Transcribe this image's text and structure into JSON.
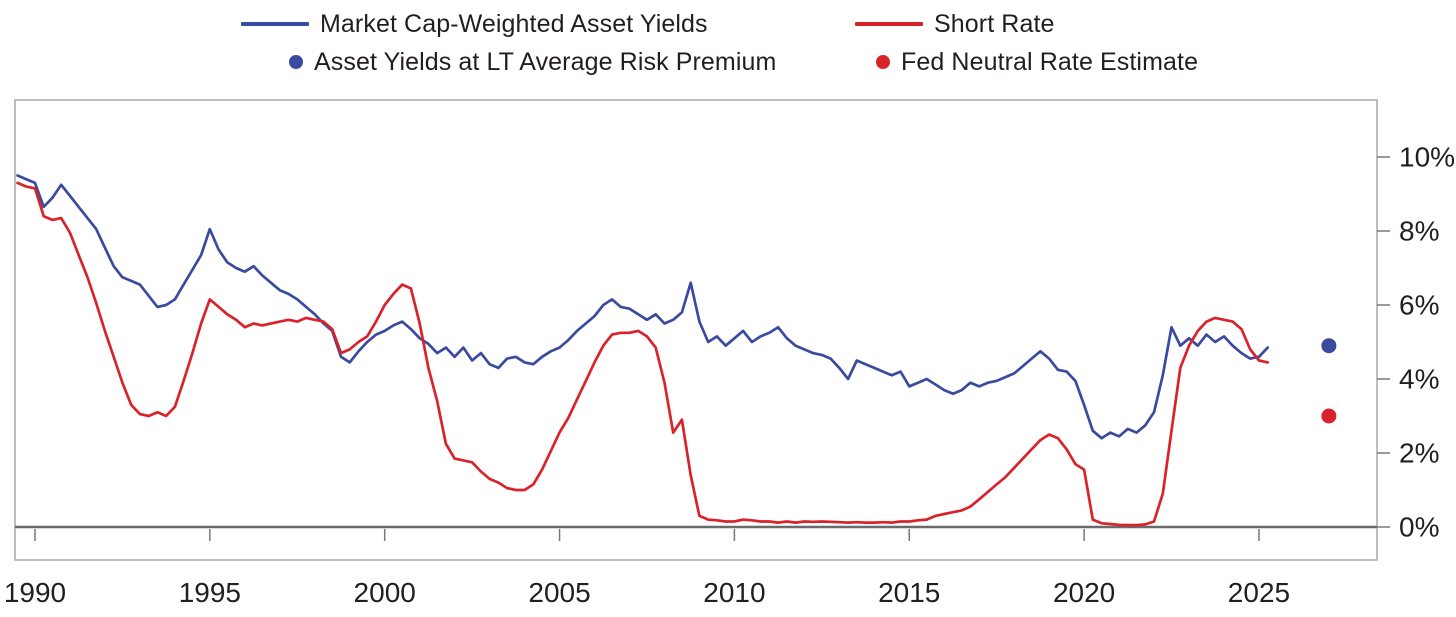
{
  "colors": {
    "blue": "#3A4B9F",
    "red": "#D9232B",
    "text": "#221E1F",
    "axis_box": "#A8A8A8",
    "tick": "#787878",
    "zero_line": "#6A6A6A"
  },
  "legend": {
    "items": [
      {
        "label": "Market Cap-Weighted Asset Yields",
        "marker": "line",
        "color_key": "blue"
      },
      {
        "label": "Short Rate",
        "marker": "line",
        "color_key": "red"
      },
      {
        "label": "Asset Yields at LT Average Risk Premium",
        "marker": "dot",
        "color_key": "blue"
      },
      {
        "label": "Fed Neutral Rate Estimate",
        "marker": "dot",
        "color_key": "red"
      }
    ]
  },
  "chart_data": {
    "type": "line",
    "title": "",
    "xlabel": "",
    "ylabel": "",
    "grid": false,
    "legend_position": "top",
    "xlim": [
      1989.4,
      2028.6
    ],
    "ylim": [
      -0.9,
      11.55
    ],
    "x_axis": {
      "ticks": [
        {
          "value": 1990,
          "label": "1990"
        },
        {
          "value": 1995,
          "label": "1995"
        },
        {
          "value": 2000,
          "label": "2000"
        },
        {
          "value": 2005,
          "label": "2005"
        },
        {
          "value": 2010,
          "label": "2010"
        },
        {
          "value": 2015,
          "label": "2015"
        },
        {
          "value": 2020,
          "label": "2020"
        },
        {
          "value": 2025,
          "label": "2025"
        }
      ]
    },
    "y_axis": {
      "unit": "%",
      "ticks": [
        {
          "value": 10,
          "label": "10%"
        },
        {
          "value": 8,
          "label": "8%"
        },
        {
          "value": 6,
          "label": "6%"
        },
        {
          "value": 4,
          "label": "4%"
        },
        {
          "value": 2,
          "label": "2%"
        },
        {
          "value": 0,
          "label": "0%"
        }
      ]
    },
    "series": [
      {
        "name": "Market Cap-Weighted Asset Yields",
        "color_key": "blue",
        "x_start": 1989.5,
        "x_step": 0.25,
        "values": [
          9.5,
          9.4,
          9.3,
          8.65,
          8.9,
          9.25,
          8.95,
          8.65,
          8.35,
          8.05,
          7.55,
          7.05,
          6.75,
          6.65,
          6.55,
          6.25,
          5.95,
          6.0,
          6.15,
          6.55,
          6.95,
          7.35,
          8.05,
          7.5,
          7.15,
          7.0,
          6.9,
          7.05,
          6.8,
          6.6,
          6.4,
          6.3,
          6.15,
          5.95,
          5.75,
          5.5,
          5.3,
          4.6,
          4.45,
          4.75,
          5.0,
          5.2,
          5.3,
          5.45,
          5.55,
          5.35,
          5.1,
          4.95,
          4.7,
          4.85,
          4.6,
          4.85,
          4.5,
          4.7,
          4.4,
          4.3,
          4.55,
          4.6,
          4.45,
          4.4,
          4.6,
          4.75,
          4.85,
          5.05,
          5.3,
          5.5,
          5.7,
          6.0,
          6.15,
          5.95,
          5.9,
          5.75,
          5.6,
          5.75,
          5.5,
          5.6,
          5.8,
          6.6,
          5.55,
          5.0,
          5.15,
          4.9,
          5.1,
          5.3,
          5.0,
          5.15,
          5.25,
          5.4,
          5.1,
          4.9,
          4.8,
          4.7,
          4.65,
          4.55,
          4.3,
          4.0,
          4.5,
          4.4,
          4.3,
          4.2,
          4.1,
          4.2,
          3.8,
          3.9,
          4.0,
          3.85,
          3.7,
          3.6,
          3.7,
          3.9,
          3.8,
          3.9,
          3.95,
          4.05,
          4.15,
          4.35,
          4.55,
          4.75,
          4.55,
          4.25,
          4.2,
          3.95,
          3.3,
          2.6,
          2.4,
          2.55,
          2.45,
          2.65,
          2.55,
          2.75,
          3.1,
          4.1,
          5.4,
          4.9,
          5.1,
          4.9,
          5.2,
          5.0,
          5.15,
          4.9,
          4.7,
          4.55,
          4.6,
          4.85
        ]
      },
      {
        "name": "Short Rate",
        "color_key": "red",
        "x_start": 1989.5,
        "x_step": 0.25,
        "values": [
          9.3,
          9.2,
          9.15,
          8.4,
          8.3,
          8.35,
          7.95,
          7.35,
          6.75,
          6.05,
          5.3,
          4.6,
          3.9,
          3.3,
          3.05,
          3.0,
          3.1,
          3.0,
          3.25,
          3.95,
          4.7,
          5.5,
          6.15,
          5.95,
          5.75,
          5.6,
          5.4,
          5.5,
          5.45,
          5.5,
          5.55,
          5.6,
          5.55,
          5.65,
          5.6,
          5.55,
          5.35,
          4.7,
          4.8,
          5.0,
          5.15,
          5.55,
          6.0,
          6.3,
          6.55,
          6.45,
          5.5,
          4.3,
          3.4,
          2.25,
          1.85,
          1.8,
          1.75,
          1.5,
          1.3,
          1.2,
          1.05,
          1.0,
          1.0,
          1.15,
          1.55,
          2.05,
          2.55,
          2.95,
          3.45,
          3.95,
          4.45,
          4.9,
          5.2,
          5.25,
          5.25,
          5.3,
          5.15,
          4.85,
          3.9,
          2.55,
          2.9,
          1.4,
          0.3,
          0.2,
          0.18,
          0.15,
          0.15,
          0.2,
          0.18,
          0.15,
          0.15,
          0.12,
          0.15,
          0.12,
          0.15,
          0.14,
          0.15,
          0.14,
          0.13,
          0.12,
          0.13,
          0.12,
          0.12,
          0.13,
          0.12,
          0.15,
          0.15,
          0.18,
          0.2,
          0.3,
          0.35,
          0.4,
          0.45,
          0.55,
          0.75,
          0.95,
          1.15,
          1.35,
          1.6,
          1.85,
          2.1,
          2.35,
          2.5,
          2.4,
          2.1,
          1.7,
          1.55,
          0.2,
          0.1,
          0.08,
          0.06,
          0.05,
          0.05,
          0.07,
          0.15,
          0.9,
          2.6,
          4.3,
          4.9,
          5.3,
          5.55,
          5.65,
          5.6,
          5.55,
          5.35,
          4.8,
          4.5,
          4.45
        ]
      }
    ],
    "points": [
      {
        "name": "Asset Yields at LT Average Risk Premium",
        "color_key": "blue",
        "x": 2027.0,
        "value": 4.9
      },
      {
        "name": "Fed Neutral Rate Estimate",
        "color_key": "red",
        "x": 2027.0,
        "value": 3.0
      }
    ]
  }
}
